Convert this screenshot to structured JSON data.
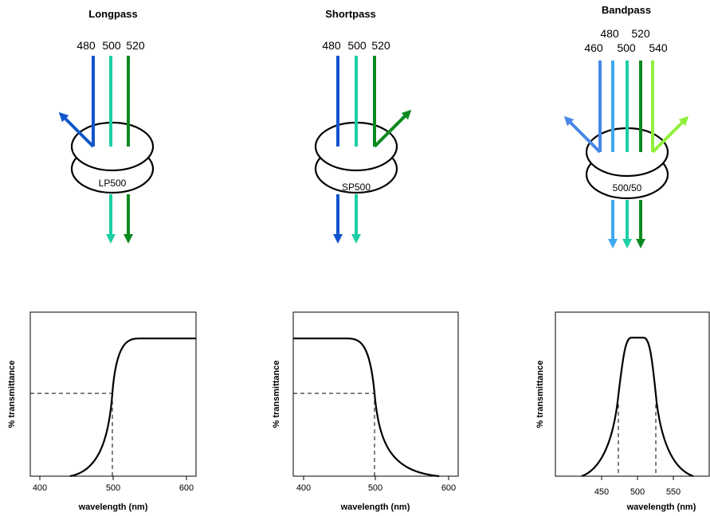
{
  "colors": {
    "c460": "#4a86e8",
    "c480": "#1155cc",
    "c480b": "#3ea8f0",
    "c500": "#1ccfa4",
    "c520": "#0a8a1e",
    "c540": "#8ff03a"
  },
  "panels": [
    {
      "key": "longpass",
      "title": "Longpass",
      "wavelengths": [
        "480",
        "500",
        "520"
      ],
      "filter_label": "LP500",
      "plot": {
        "ylabel": "% transmittance",
        "xlabel": "wavelength (nm)",
        "ticks": [
          "400",
          "500",
          "600"
        ]
      }
    },
    {
      "key": "shortpass",
      "title": "Shortpass",
      "wavelengths": [
        "480",
        "500",
        "520"
      ],
      "filter_label": "SP500",
      "plot": {
        "ylabel": "% transmittance",
        "xlabel": "wavelength (nm)",
        "ticks": [
          "400",
          "500",
          "600"
        ]
      }
    },
    {
      "key": "bandpass",
      "title": "Bandpass",
      "wavelengths_top": [
        "480",
        "520"
      ],
      "wavelengths_bottom": [
        "460",
        "500",
        "540"
      ],
      "filter_label": "500/50",
      "plot": {
        "ylabel": "% transmittance",
        "xlabel": "wavelength (nm)",
        "ticks": [
          "450",
          "500",
          "550"
        ]
      }
    }
  ]
}
